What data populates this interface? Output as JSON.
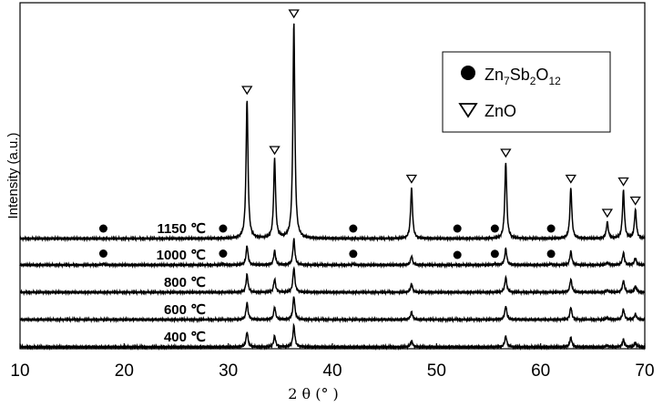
{
  "chart_data": {
    "type": "line",
    "title": "",
    "xlabel": "2 θ (° )",
    "ylabel": "Intensity (a.u.)",
    "xlim": [
      10,
      70
    ],
    "xticks": [
      10,
      20,
      30,
      40,
      50,
      60,
      70
    ],
    "grid": false,
    "legend_placement": "top-right",
    "series": [
      {
        "name": "400 ℃",
        "peaks": [
          {
            "x": 31.8,
            "h": 0.55
          },
          {
            "x": 34.45,
            "h": 0.4
          },
          {
            "x": 36.3,
            "h": 0.78
          },
          {
            "x": 47.6,
            "h": 0.22
          },
          {
            "x": 56.65,
            "h": 0.4
          },
          {
            "x": 62.9,
            "h": 0.35
          },
          {
            "x": 66.4,
            "h": 0.05
          },
          {
            "x": 67.95,
            "h": 0.27
          },
          {
            "x": 69.1,
            "h": 0.15
          }
        ]
      },
      {
        "name": "600 ℃",
        "peaks": [
          {
            "x": 31.8,
            "h": 0.62
          },
          {
            "x": 34.45,
            "h": 0.45
          },
          {
            "x": 36.3,
            "h": 0.85
          },
          {
            "x": 47.6,
            "h": 0.28
          },
          {
            "x": 56.65,
            "h": 0.5
          },
          {
            "x": 62.9,
            "h": 0.45
          },
          {
            "x": 66.4,
            "h": 0.08
          },
          {
            "x": 67.95,
            "h": 0.38
          },
          {
            "x": 69.1,
            "h": 0.2
          }
        ]
      },
      {
        "name": "800 ℃",
        "peaks": [
          {
            "x": 31.8,
            "h": 0.65
          },
          {
            "x": 34.45,
            "h": 0.48
          },
          {
            "x": 36.3,
            "h": 0.9
          },
          {
            "x": 47.6,
            "h": 0.3
          },
          {
            "x": 56.65,
            "h": 0.55
          },
          {
            "x": 62.9,
            "h": 0.48
          },
          {
            "x": 66.4,
            "h": 0.08
          },
          {
            "x": 67.95,
            "h": 0.42
          },
          {
            "x": 69.1,
            "h": 0.22
          }
        ]
      },
      {
        "name": "1000 ℃",
        "peaks": [
          {
            "x": 31.8,
            "h": 0.7
          },
          {
            "x": 34.45,
            "h": 0.52
          },
          {
            "x": 36.3,
            "h": 0.95
          },
          {
            "x": 47.6,
            "h": 0.33
          },
          {
            "x": 56.65,
            "h": 0.6
          },
          {
            "x": 62.9,
            "h": 0.5
          },
          {
            "x": 66.4,
            "h": 0.09
          },
          {
            "x": 67.95,
            "h": 0.45
          },
          {
            "x": 69.1,
            "h": 0.25
          },
          {
            "x": 18.0,
            "h": 0.05
          },
          {
            "x": 29.5,
            "h": 0.05
          },
          {
            "x": 42.0,
            "h": 0.04
          },
          {
            "x": 55.6,
            "h": 0.04
          },
          {
            "x": 61.0,
            "h": 0.04
          }
        ]
      },
      {
        "name": "1150 ℃",
        "peaks": [
          {
            "x": 31.8,
            "h": 5.1
          },
          {
            "x": 34.45,
            "h": 2.9
          },
          {
            "x": 36.3,
            "h": 7.9
          },
          {
            "x": 47.6,
            "h": 1.85
          },
          {
            "x": 56.65,
            "h": 2.8
          },
          {
            "x": 62.9,
            "h": 1.85
          },
          {
            "x": 66.4,
            "h": 0.6
          },
          {
            "x": 67.95,
            "h": 1.75
          },
          {
            "x": 69.1,
            "h": 1.05
          }
        ]
      }
    ],
    "markers": [
      {
        "phase": "Zn7Sb2O12",
        "symbol": "circle",
        "series": "1150 ℃",
        "x": [
          18.0,
          29.5,
          42.0,
          52.0,
          55.6,
          61.0
        ]
      },
      {
        "phase": "Zn7Sb2O12",
        "symbol": "circle",
        "series": "1000 ℃",
        "x": [
          18.0,
          29.5,
          42.0,
          52.0,
          55.6,
          61.0
        ]
      },
      {
        "phase": "ZnO",
        "symbol": "triangle",
        "series": "1150 ℃",
        "x": [
          31.8,
          34.45,
          36.3,
          47.6,
          56.65,
          62.9,
          66.4,
          67.95,
          69.1
        ]
      }
    ],
    "legend": [
      {
        "symbol": "circle",
        "label": "Zn",
        "sub1": "7",
        "mid1": "Sb",
        "sub2": "2",
        "mid2": "O",
        "sub3": "12"
      },
      {
        "symbol": "triangle",
        "label": "ZnO"
      }
    ]
  }
}
